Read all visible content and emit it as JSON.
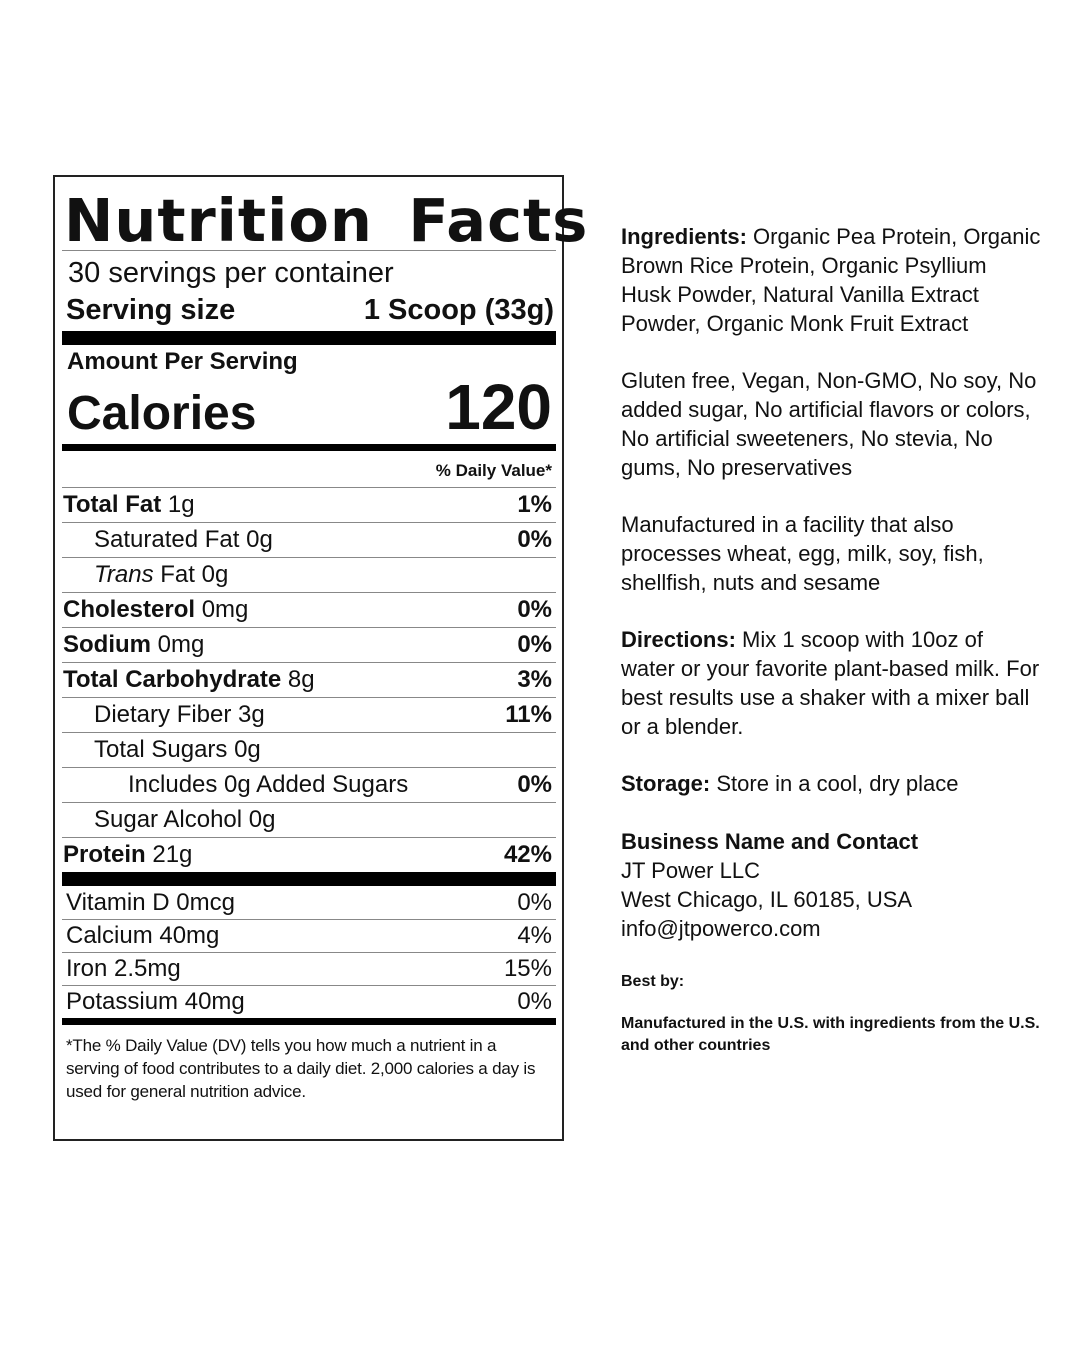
{
  "nutrition": {
    "title": "Nutrition Facts",
    "servings_per_container": "30 servings per container",
    "serving_size_label": "Serving size",
    "serving_size_value": "1 Scoop (33g)",
    "amount_per_serving": "Amount Per Serving",
    "calories_label": "Calories",
    "calories_value": "120",
    "daily_value_header": "% Daily Value*",
    "rows": [
      {
        "name": "Total Fat",
        "amount": "1g",
        "dv": "1%"
      },
      {
        "name": "Saturated Fat",
        "amount": "0g",
        "dv": "0%"
      },
      {
        "name": "Trans",
        "name_suffix": "Fat",
        "amount": "0g",
        "dv": ""
      },
      {
        "name": "Cholesterol",
        "amount": "0mg",
        "dv": "0%"
      },
      {
        "name": "Sodium",
        "amount": "0mg",
        "dv": "0%"
      },
      {
        "name": "Total Carbohydrate",
        "amount": "8g",
        "dv": "3%"
      },
      {
        "name": "Dietary Fiber",
        "amount": "3g",
        "dv": "11%"
      },
      {
        "name": "Total Sugars",
        "amount": "0g",
        "dv": ""
      },
      {
        "name": "Includes 0g Added Sugars",
        "amount": "",
        "dv": "0%"
      },
      {
        "name": "Sugar Alcohol",
        "amount": "0g",
        "dv": ""
      },
      {
        "name": "Protein",
        "amount": "21g",
        "dv": "42%"
      }
    ],
    "vitamins": [
      {
        "name": "Vitamin D",
        "amount": "0mcg",
        "dv": "0%"
      },
      {
        "name": "Calcium",
        "amount": "40mg",
        "dv": "4%"
      },
      {
        "name": "Iron",
        "amount": "2.5mg",
        "dv": "15%"
      },
      {
        "name": "Potassium",
        "amount": "40mg",
        "dv": "0%"
      }
    ],
    "footnote": "*The % Daily Value (DV) tells you how much a nutrient in a serving of food contributes to a daily diet. 2,000 calories a day is used for general nutrition advice."
  },
  "info": {
    "ingredients_label": "Ingredients:",
    "ingredients_text": "Organic Pea Protein, Organic Brown Rice Protein, Organic Psyllium Husk Powder, Natural Vanilla Extract Powder, Organic Monk Fruit Extract",
    "claims": "Gluten free, Vegan, Non-GMO, No soy, No added sugar, No artificial flavors or colors, No artificial sweeteners, No stevia, No gums, No preservatives",
    "facility": "Manufactured in a facility that also processes wheat, egg, milk, soy, fish, shellfish, nuts and sesame",
    "directions_label": "Directions:",
    "directions_text": "Mix 1 scoop with 10oz of water or your favorite plant-based milk. For best results use a shaker with a mixer ball or a blender.",
    "storage_label": "Storage:",
    "storage_text": "Store in a cool, dry place",
    "business_label": "Business Name and Contact",
    "business_name": "JT Power LLC",
    "business_address": "West Chicago, IL 60185, USA",
    "business_email": "info@jtpowerco.com",
    "best_by": "Best by:",
    "origin": "Manufactured in the U.S. with ingredients from the U.S. and other countries"
  }
}
